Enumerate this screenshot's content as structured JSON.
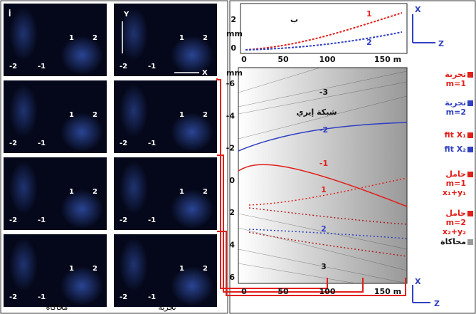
{
  "panel_a": {
    "label": "أ",
    "order_labels": [
      "1",
      "2",
      "-2",
      "-1"
    ],
    "axes": [
      "Y",
      "X"
    ],
    "column_labels": [
      "محاكاة",
      "تجربة"
    ]
  },
  "panel_b": {
    "label": "ب",
    "top_plot": {
      "y_unit": "mm",
      "yticks": [
        "2",
        "0"
      ],
      "xticks": [
        "0",
        "50",
        "100",
        "150 m"
      ],
      "curve_labels": [
        "1",
        "2"
      ]
    },
    "main_plot": {
      "y_unit": "mm",
      "yticks": [
        "-6",
        "-4",
        "-2",
        "0",
        "2",
        "4",
        "6"
      ],
      "xticks": [
        "0",
        "50",
        "100",
        "150 m"
      ],
      "annotations": [
        "-3",
        "شبكة إيري",
        "-2",
        "-1",
        "1",
        "2",
        "3"
      ]
    },
    "axes": [
      "X",
      "Z"
    ]
  },
  "legend": [
    {
      "lines": [
        "تجربة",
        "m=1"
      ]
    },
    {
      "lines": [
        "تجربة",
        "m=2"
      ]
    },
    {
      "lines": [
        "fit X₁"
      ]
    },
    {
      "lines": [
        "fit X₂"
      ]
    },
    {
      "lines": [
        "حامل",
        "m=1",
        "x₁+y₁"
      ]
    },
    {
      "lines": [
        "حامل",
        "m=2",
        "x₂+y₂"
      ]
    },
    {
      "lines": [
        "محاكاة"
      ]
    }
  ]
}
